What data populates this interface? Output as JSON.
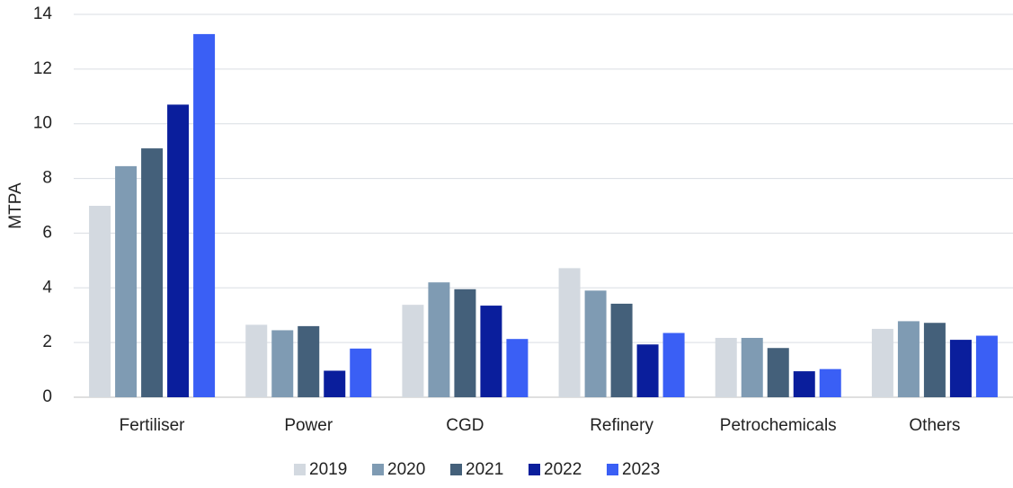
{
  "chart_data": {
    "type": "bar",
    "y_label": "MTPA",
    "categories": [
      "Fertiliser",
      "Power",
      "CGD",
      "Refinery",
      "Petrochemicals",
      "Others"
    ],
    "series": [
      {
        "name": "2019",
        "color": "#d3d9e0",
        "values": [
          7.0,
          2.65,
          3.38,
          4.72,
          2.17,
          2.5
        ]
      },
      {
        "name": "2020",
        "color": "#7f9bb3",
        "values": [
          8.45,
          2.45,
          4.2,
          3.9,
          2.17,
          2.78
        ]
      },
      {
        "name": "2021",
        "color": "#44607a",
        "values": [
          9.1,
          2.6,
          3.95,
          3.42,
          1.8,
          2.72
        ]
      },
      {
        "name": "2022",
        "color": "#0a1e9c",
        "values": [
          10.7,
          0.97,
          3.35,
          1.93,
          0.95,
          2.1
        ]
      },
      {
        "name": "2023",
        "color": "#3a5ff5",
        "values": [
          13.28,
          1.78,
          2.13,
          2.35,
          1.03,
          2.25
        ]
      }
    ],
    "ylim": [
      0,
      14
    ],
    "yticks": [
      0,
      2,
      4,
      6,
      8,
      10,
      12,
      14
    ],
    "grid": true,
    "legend": "bottom"
  }
}
